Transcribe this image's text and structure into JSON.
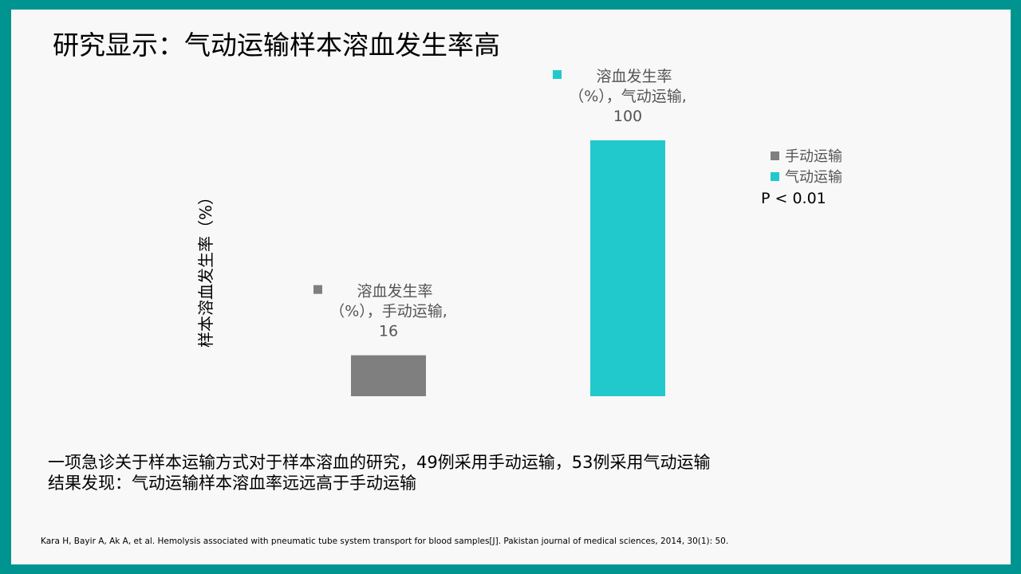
{
  "slide": {
    "title": "研究显示：气动运输样本溶血发生率高",
    "description_lines": [
      "一项急诊关于样本运输方式对于样本溶血的研究，49例采用手动运输，53例采用气动运输",
      "结果发现：气动运输样本溶血率远远高于手动运输"
    ],
    "reference": "Kara H, Bayir A, Ak A, et al. Hemolysis associated with pneumatic tube system transport for blood samples[J]. Pakistan journal of medical sciences, 2014, 30(1): 50.",
    "p_value": "P < 0.01"
  },
  "chart_data": {
    "type": "bar",
    "ylabel": "样本溶血发生率（%）",
    "xlabel": "",
    "ylim": [
      0,
      100
    ],
    "grid": false,
    "legend_position": "right",
    "series": [
      {
        "name": "手动运输",
        "color": "#7f7f7f",
        "value": 16,
        "label_lines": [
          "溶血发生率",
          "（%），手动运输,",
          "16"
        ]
      },
      {
        "name": "气动运输",
        "color": "#22c9cc",
        "value": 100,
        "label_lines": [
          "溶血发生率",
          "（%），气动运输,",
          "100"
        ]
      }
    ]
  }
}
